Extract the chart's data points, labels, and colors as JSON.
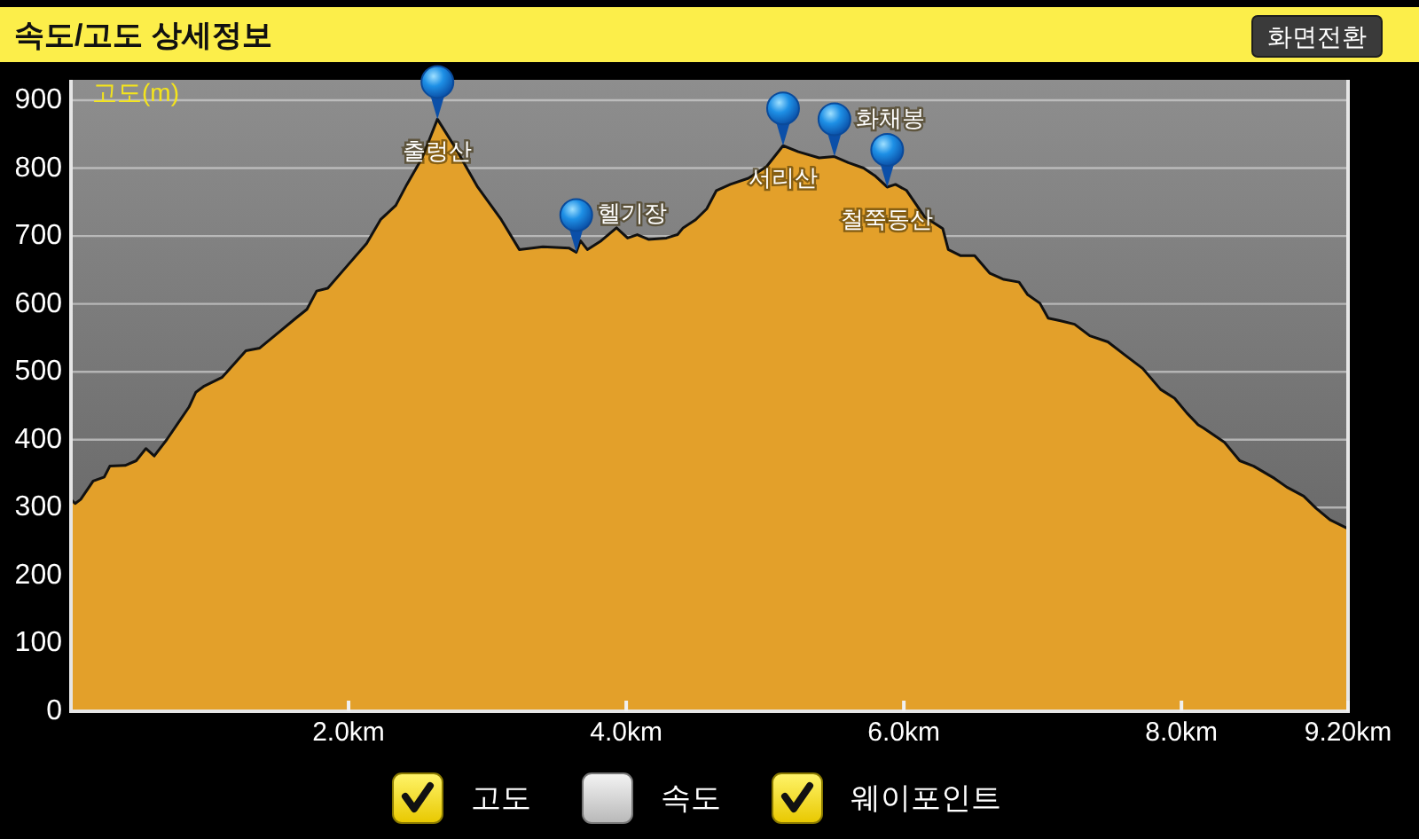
{
  "chart_data": {
    "type": "area",
    "title": "속도/고도 상세정보",
    "ylabel": "고도(m)",
    "x": [
      0,
      0.03,
      0.07,
      0.16,
      0.24,
      0.28,
      0.39,
      0.47,
      0.54,
      0.6,
      0.69,
      0.77,
      0.85,
      0.9,
      0.96,
      1.09,
      1.26,
      1.36,
      1.49,
      1.62,
      1.7,
      1.77,
      1.85,
      1.96,
      2.13,
      2.23,
      2.34,
      2.42,
      2.53,
      2.64,
      2.76,
      2.93,
      3.1,
      3.23,
      3.4,
      3.59,
      3.64,
      3.67,
      3.72,
      3.82,
      3.93,
      4.01,
      4.08,
      4.16,
      4.29,
      4.37,
      4.41,
      4.5,
      4.58,
      4.65,
      4.75,
      4.88,
      5.01,
      5.13,
      5.24,
      5.39,
      5.5,
      5.6,
      5.71,
      5.79,
      5.88,
      5.94,
      6.02,
      6.15,
      6.28,
      6.32,
      6.41,
      6.51,
      6.62,
      6.72,
      6.83,
      6.89,
      6.98,
      7.04,
      7.13,
      7.23,
      7.34,
      7.47,
      7.61,
      7.72,
      7.85,
      7.95,
      8.04,
      8.12,
      8.16,
      8.31,
      8.42,
      8.52,
      8.67,
      8.76,
      8.88,
      8.97,
      9.07,
      9.2
    ],
    "values": [
      312,
      306,
      312,
      339,
      345,
      361,
      362,
      369,
      387,
      376,
      400,
      424,
      448,
      470,
      479,
      492,
      531,
      535,
      557,
      579,
      592,
      619,
      623,
      649,
      689,
      724,
      745,
      776,
      815,
      872,
      833,
      772,
      724,
      680,
      684,
      682,
      676,
      693,
      680,
      693,
      712,
      697,
      702,
      695,
      697,
      702,
      712,
      724,
      740,
      767,
      776,
      785,
      802,
      833,
      824,
      815,
      817,
      808,
      800,
      789,
      772,
      776,
      767,
      728,
      711,
      680,
      671,
      671,
      645,
      636,
      632,
      614,
      601,
      579,
      575,
      570,
      553,
      544,
      522,
      505,
      474,
      461,
      439,
      422,
      417,
      396,
      369,
      361,
      343,
      330,
      317,
      299,
      282,
      269
    ],
    "color": "#e3a02a",
    "xlim": [
      0,
      9.2
    ],
    "xticks": [
      {
        "value": 2,
        "label": "2.0km"
      },
      {
        "value": 4,
        "label": "4.0km"
      },
      {
        "value": 6,
        "label": "6.0km"
      },
      {
        "value": 8,
        "label": "8.0km"
      },
      {
        "value": 9.2,
        "label": "9.20km"
      }
    ],
    "ylim": [
      0,
      930
    ],
    "yticks": [
      0,
      100,
      200,
      300,
      400,
      500,
      600,
      700,
      800,
      900
    ],
    "grid": "y",
    "annotations": [
      "화면전환",
      {
        "text": "출렁산",
        "x": 2.64,
        "y": 872
      },
      {
        "text": "헬기장",
        "x": 3.64,
        "y": 676
      },
      {
        "text": "서리산",
        "x": 5.13,
        "y": 833
      },
      {
        "text": "화채봉",
        "x": 5.5,
        "y": 817
      },
      {
        "text": "철쭉동산",
        "x": 5.88,
        "y": 772
      },
      "고도",
      "속도",
      "웨이포인트"
    ]
  }
}
